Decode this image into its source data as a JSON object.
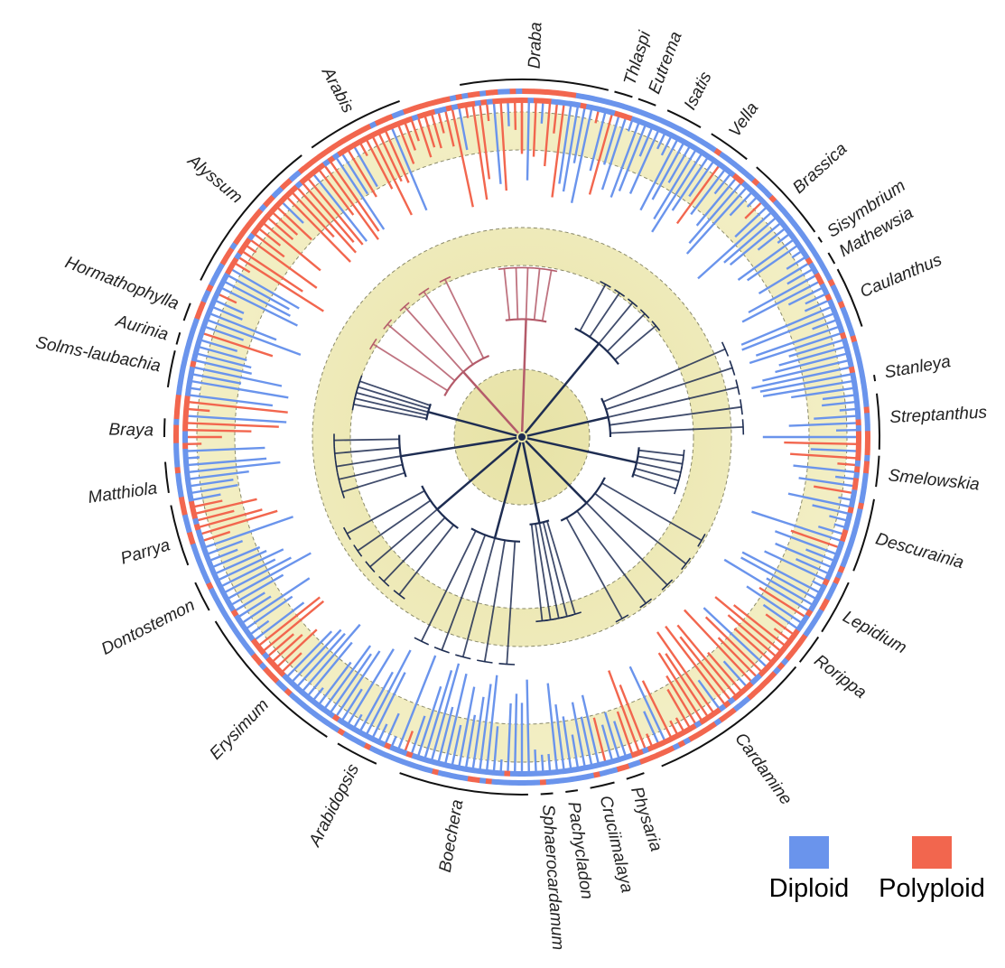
{
  "colors": {
    "diploid": "#6a94ec",
    "polyploid": "#f2664e",
    "band": "#efeab6",
    "branch_dark": "#1e2d52"
  },
  "legend": {
    "diploid_label": "Diploid",
    "polyploid_label": "Polyploid"
  },
  "genera": [
    {
      "name": "Draba",
      "angle": 2,
      "start": -10,
      "end": 14
    },
    {
      "name": "Thlaspi",
      "angle": 17,
      "start": 15,
      "end": 18
    },
    {
      "name": "Eutrema",
      "angle": 21,
      "start": 19,
      "end": 22
    },
    {
      "name": "Isatis",
      "angle": 27,
      "start": 24,
      "end": 30
    },
    {
      "name": "Vella",
      "angle": 35,
      "start": 32,
      "end": 39
    },
    {
      "name": "Brassica",
      "angle": 48,
      "start": 41,
      "end": 55
    },
    {
      "name": "Sisymbrium",
      "angle": 56.5,
      "start": 56,
      "end": 57
    },
    {
      "name": "Mathewsia",
      "angle": 60,
      "start": 59,
      "end": 61
    },
    {
      "name": "Caulanthus",
      "angle": 67,
      "start": 62,
      "end": 72
    },
    {
      "name": "Stanleya",
      "angle": 80,
      "start": 80,
      "end": 81
    },
    {
      "name": "Streptanthus",
      "angle": 87,
      "start": 83,
      "end": 92
    },
    {
      "name": "Smelowskia",
      "angle": 96,
      "start": 93,
      "end": 98
    },
    {
      "name": "Descurainia",
      "angle": 106,
      "start": 100,
      "end": 112
    },
    {
      "name": "Lepidium",
      "angle": 119,
      "start": 114,
      "end": 123
    },
    {
      "name": "Rorippa",
      "angle": 127,
      "start": 124,
      "end": 129
    },
    {
      "name": "Cardamine",
      "angle": 144,
      "start": 130,
      "end": 157
    },
    {
      "name": "Physaria",
      "angle": 162,
      "start": 160,
      "end": 163
    },
    {
      "name": "Cruciimalaya",
      "angle": 167,
      "start": 165,
      "end": 169
    },
    {
      "name": "Pachycladon",
      "angle": 172,
      "start": 171,
      "end": 173
    },
    {
      "name": "Sphaerocardamum",
      "angle": 176,
      "start": 175,
      "end": 177
    },
    {
      "name": "Boechera",
      "angle": 190,
      "start": 179,
      "end": 200
    },
    {
      "name": "Arabidopsis",
      "angle": 207,
      "start": 204,
      "end": 211
    },
    {
      "name": "Erysimum",
      "angle": 224,
      "start": 213,
      "end": 239
    },
    {
      "name": "Dontostemon",
      "angle": 243,
      "start": 241,
      "end": 246
    },
    {
      "name": "Parrya",
      "angle": 253,
      "start": 249,
      "end": 259
    },
    {
      "name": "Matthiola",
      "angle": 262,
      "start": 261,
      "end": 266
    },
    {
      "name": "Braya",
      "angle": 271,
      "start": 270,
      "end": 273
    },
    {
      "name": "Solms-laubachia",
      "angle": 281,
      "start": 278,
      "end": 284
    },
    {
      "name": "Aurinia",
      "angle": 286,
      "start": 285,
      "end": 287
    },
    {
      "name": "Hormathophylla",
      "angle": 291,
      "start": 289,
      "end": 292
    },
    {
      "name": "Alyssum",
      "angle": 310,
      "start": 296,
      "end": 322
    },
    {
      "name": "Arabis",
      "angle": 332,
      "start": 324,
      "end": 340
    }
  ]
}
